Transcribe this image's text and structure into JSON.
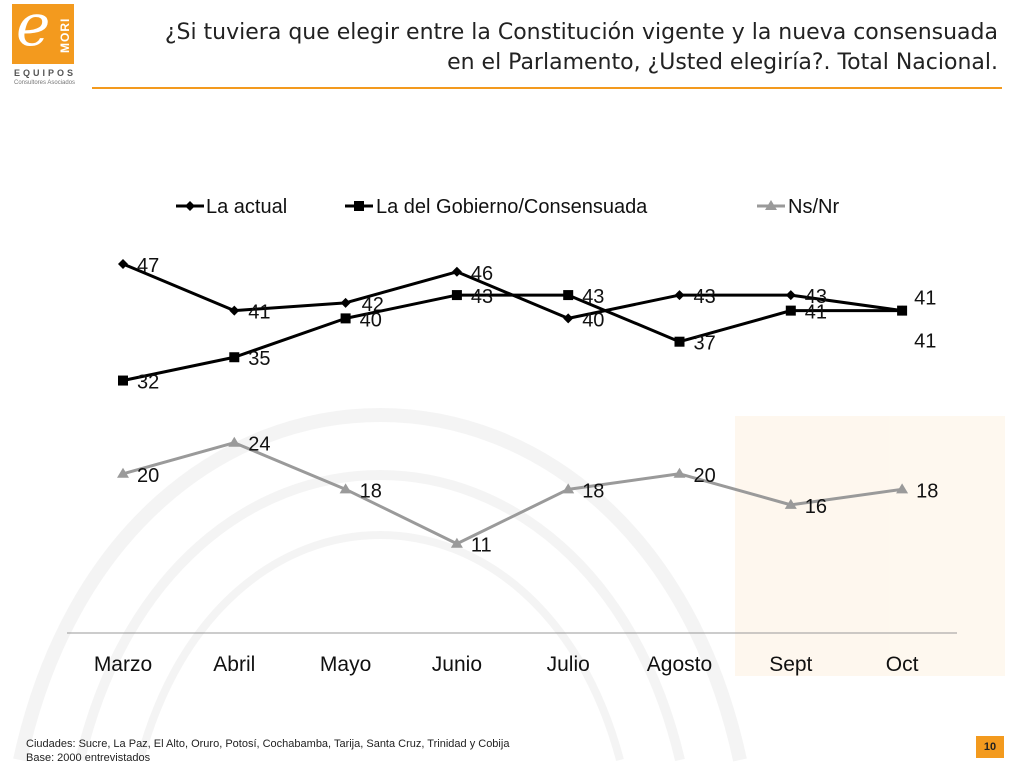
{
  "logo": {
    "letter": "e",
    "brand": "MORI",
    "equipos": "EQUIPOS",
    "consultores": "Consultores Asociados"
  },
  "title": "¿Si tuviera que elegir entre la Constitución vigente y la nueva consensuada en el Parlamento, ¿Usted elegiría?. Total Nacional.",
  "footer": {
    "cities": "Ciudades: Sucre, La Paz, El Alto, Oruro, Potosí, Cochabamba, Tarija, Santa Cruz, Trinidad y Cobija",
    "base": "Base: 2000 entrevistados"
  },
  "page_number": "10",
  "colors": {
    "accent": "#f39a1e",
    "series_dark": "#000000",
    "series_gray": "#9a9a9a"
  },
  "chart_data": {
    "type": "line",
    "categories": [
      "Marzo",
      "Abril",
      "Mayo",
      "Junio",
      "Julio",
      "Agosto",
      "Sept",
      "Oct"
    ],
    "series": [
      {
        "name": "La actual",
        "marker": "diamond",
        "values": [
          47,
          41,
          42,
          46,
          40,
          43,
          43,
          41
        ]
      },
      {
        "name": "La del Gobierno/Consensuada",
        "marker": "square",
        "values": [
          32,
          35,
          40,
          43,
          43,
          37,
          41,
          41
        ]
      },
      {
        "name": "Ns/Nr",
        "marker": "triangle",
        "values": [
          20,
          24,
          18,
          11,
          18,
          20,
          16,
          18
        ]
      }
    ],
    "legend": "top",
    "grid": false
  }
}
